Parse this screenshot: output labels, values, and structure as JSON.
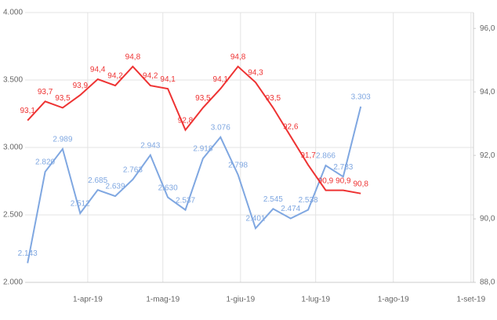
{
  "chart_data": {
    "type": "line",
    "x": [
      "2019-03-08",
      "2019-03-15",
      "2019-03-22",
      "2019-03-29",
      "2019-04-05",
      "2019-04-12",
      "2019-04-19",
      "2019-04-26",
      "2019-05-03",
      "2019-05-10",
      "2019-05-17",
      "2019-05-24",
      "2019-05-31",
      "2019-06-07",
      "2019-06-14",
      "2019-06-21",
      "2019-06-28",
      "2019-07-05",
      "2019-07-12",
      "2019-07-19"
    ],
    "series": [
      {
        "color": "#7fa7e1",
        "values": [
          2143,
          2820,
          2989,
          2512,
          2685,
          2639,
          2763,
          2943,
          2630,
          2537,
          2918,
          3076,
          2798,
          2401,
          2545,
          2474,
          2538,
          2866,
          2783,
          3303
        ],
        "value_labels": [
          "2.143",
          "2.820",
          "2.989",
          "2.512",
          "2.685",
          "2.639",
          "2.763",
          "2.943",
          "2.630",
          "2.537",
          "2.918",
          "3.076",
          "2.798",
          "2.401",
          "2.545",
          "2.474",
          "2.538",
          "2.866",
          "2.783",
          "3.303"
        ]
      },
      {
        "color": "#ee3333",
        "axis": "y2",
        "values": [
          93.1,
          93.7,
          93.5,
          93.9,
          94.4,
          94.2,
          94.8,
          94.2,
          94.1,
          92.8,
          93.5,
          94.1,
          94.8,
          94.3,
          93.5,
          92.6,
          91.7,
          90.9,
          90.9,
          90.8
        ],
        "value_labels": [
          "93,1",
          "93,7",
          "93,5",
          "93,9",
          "94,4",
          "94,2",
          "94,8",
          "94,2",
          "94,1",
          "92,8",
          "93,5",
          "94,1",
          "94,8",
          "94,3",
          "93,5",
          "92,6",
          "91,7",
          "90,9",
          "90,9",
          "90,8"
        ]
      }
    ],
    "xlim": [
      "2019-03-07",
      "2019-09-02"
    ],
    "xticks": [
      {
        "value": "2019-04-01",
        "label": "1-apr-19"
      },
      {
        "value": "2019-05-01",
        "label": "1-mag-19"
      },
      {
        "value": "2019-06-01",
        "label": "1-giu-19"
      },
      {
        "value": "2019-07-01",
        "label": "1-lug-19"
      },
      {
        "value": "2019-08-01",
        "label": "1-ago-19"
      },
      {
        "value": "2019-09-01",
        "label": "1-set-19"
      }
    ],
    "ylim": [
      2000,
      4000
    ],
    "yticks": [
      {
        "value": 2000,
        "label": "2.000"
      },
      {
        "value": 2500,
        "label": "2.500"
      },
      {
        "value": 3000,
        "label": "3.000"
      },
      {
        "value": 3500,
        "label": "3.500"
      },
      {
        "value": 4000,
        "label": "4.000"
      }
    ],
    "y2lim": [
      88,
      96.5
    ],
    "y2ticks": [
      {
        "value": 88,
        "label": "88,0"
      },
      {
        "value": 90,
        "label": "90,0"
      },
      {
        "value": 92,
        "label": "92,0"
      },
      {
        "value": 94,
        "label": "94,0"
      },
      {
        "value": 96,
        "label": "96,0"
      }
    ],
    "grid": true
  }
}
